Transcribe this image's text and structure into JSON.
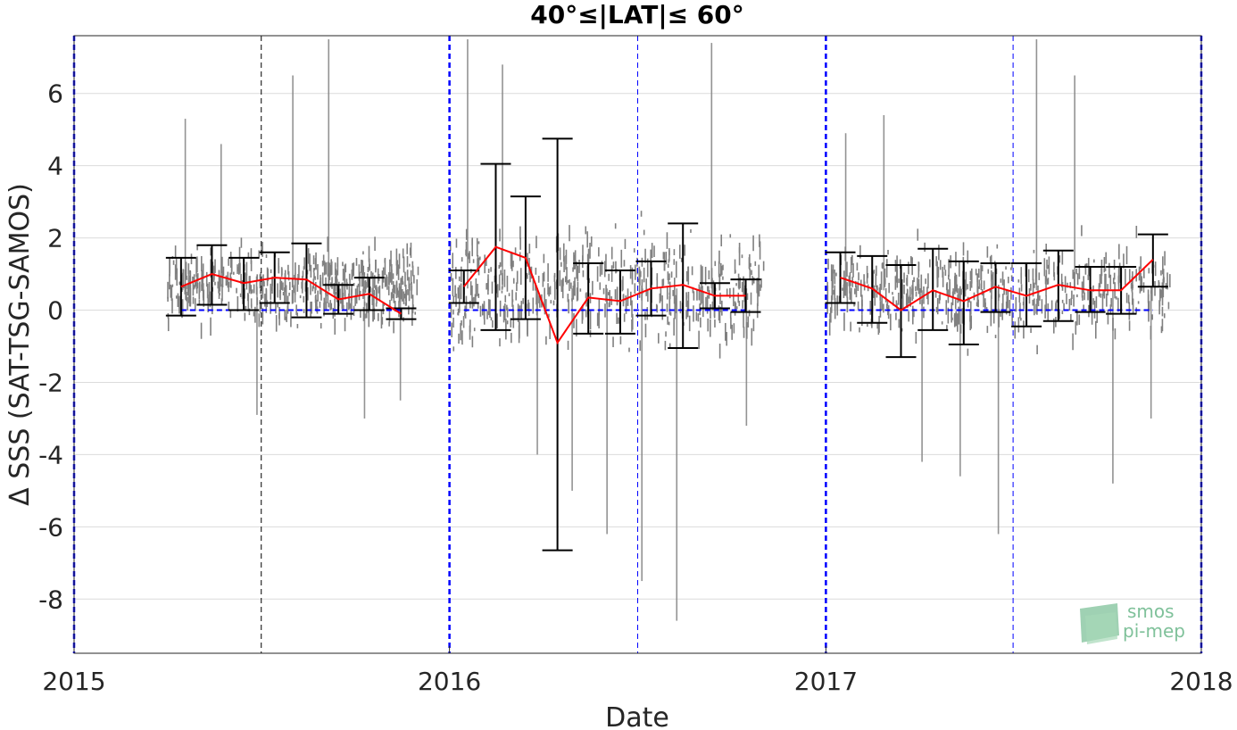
{
  "chart_data": {
    "type": "scatter",
    "title": "40°≤|LAT|≤ 60°",
    "xlabel": "Date",
    "ylabel": "Δ SSS (SAT-TSG-SAMOS)",
    "xlim": [
      "2015-01-01",
      "2018-01-01"
    ],
    "ylim": [
      -9.5,
      7.6
    ],
    "x_ticks": [
      "2015",
      "2016",
      "2017",
      "2018"
    ],
    "y_ticks": [
      -8,
      -6,
      -4,
      -2,
      0,
      2,
      4,
      6
    ],
    "grid": true,
    "colors": {
      "scatter": "#808080",
      "mean_line": "#ff0000",
      "error_bars": "#000000",
      "zero_line": "#0000ff",
      "year_lines": "#0000ff",
      "grid": "#dcdcdc"
    },
    "monthly_stats": [
      {
        "date": "2015-04-15",
        "mean": 0.65,
        "lower": -0.15,
        "upper": 1.45
      },
      {
        "date": "2015-05-15",
        "mean": 1.0,
        "lower": 0.15,
        "upper": 1.8
      },
      {
        "date": "2015-06-15",
        "mean": 0.75,
        "lower": 0.0,
        "upper": 1.45
      },
      {
        "date": "2015-07-15",
        "mean": 0.9,
        "lower": 0.2,
        "upper": 1.6
      },
      {
        "date": "2015-08-15",
        "mean": 0.85,
        "lower": -0.2,
        "upper": 1.85
      },
      {
        "date": "2015-09-15",
        "mean": 0.3,
        "lower": -0.1,
        "upper": 0.7
      },
      {
        "date": "2015-10-15",
        "mean": 0.45,
        "lower": 0.0,
        "upper": 0.9
      },
      {
        "date": "2015-11-15",
        "mean": -0.1,
        "lower": -0.25,
        "upper": 0.05
      },
      {
        "date": "2016-01-15",
        "mean": 0.65,
        "lower": 0.2,
        "upper": 1.1
      },
      {
        "date": "2016-02-15",
        "mean": 1.75,
        "lower": -0.55,
        "upper": 4.05
      },
      {
        "date": "2016-03-15",
        "mean": 1.45,
        "lower": -0.25,
        "upper": 3.15
      },
      {
        "date": "2016-04-15",
        "mean": -0.9,
        "lower": -6.65,
        "upper": 4.75
      },
      {
        "date": "2016-05-15",
        "mean": 0.35,
        "lower": -0.65,
        "upper": 1.3
      },
      {
        "date": "2016-06-15",
        "mean": 0.25,
        "lower": -0.65,
        "upper": 1.1
      },
      {
        "date": "2016-07-15",
        "mean": 0.6,
        "lower": -0.15,
        "upper": 1.35
      },
      {
        "date": "2016-08-15",
        "mean": 0.7,
        "lower": -1.05,
        "upper": 2.4
      },
      {
        "date": "2016-09-15",
        "mean": 0.4,
        "lower": 0.05,
        "upper": 0.75
      },
      {
        "date": "2016-10-15",
        "mean": 0.4,
        "lower": -0.05,
        "upper": 0.85
      },
      {
        "date": "2017-01-15",
        "mean": 0.9,
        "lower": 0.2,
        "upper": 1.6
      },
      {
        "date": "2017-02-15",
        "mean": 0.6,
        "lower": -0.35,
        "upper": 1.5
      },
      {
        "date": "2017-03-15",
        "mean": 0.0,
        "lower": -1.3,
        "upper": 1.25
      },
      {
        "date": "2017-04-15",
        "mean": 0.55,
        "lower": -0.55,
        "upper": 1.7
      },
      {
        "date": "2017-05-15",
        "mean": 0.25,
        "lower": -0.95,
        "upper": 1.35
      },
      {
        "date": "2017-06-15",
        "mean": 0.65,
        "lower": -0.05,
        "upper": 1.3
      },
      {
        "date": "2017-07-15",
        "mean": 0.4,
        "lower": -0.45,
        "upper": 1.3
      },
      {
        "date": "2017-08-15",
        "mean": 0.7,
        "lower": -0.3,
        "upper": 1.65
      },
      {
        "date": "2017-09-15",
        "mean": 0.55,
        "lower": -0.05,
        "upper": 1.2
      },
      {
        "date": "2017-10-15",
        "mean": 0.55,
        "lower": -0.1,
        "upper": 1.2
      },
      {
        "date": "2017-11-15",
        "mean": 1.4,
        "lower": 0.65,
        "upper": 2.1
      }
    ],
    "scatter_clusters": [
      {
        "start": "2015-04-01",
        "end": "2015-12-01",
        "center": 0.65,
        "spread": 0.9,
        "outliers": [
          5.3,
          4.6,
          -2.9,
          6.5,
          7.5,
          -3.0,
          -2.5
        ]
      },
      {
        "start": "2016-01-01",
        "end": "2016-11-01",
        "center": 0.6,
        "spread": 1.3,
        "outliers": [
          7.5,
          6.8,
          -4.0,
          -5.0,
          -6.2,
          -7.5,
          -8.6,
          7.4,
          -3.2
        ]
      },
      {
        "start": "2017-01-01",
        "end": "2017-12-01",
        "center": 0.55,
        "spread": 1.0,
        "outliers": [
          4.9,
          5.4,
          -4.2,
          -4.6,
          -6.2,
          7.5,
          6.5,
          -4.8,
          -3.0
        ]
      }
    ],
    "logo": {
      "line1": "smos",
      "line2": "pi-mep"
    }
  }
}
